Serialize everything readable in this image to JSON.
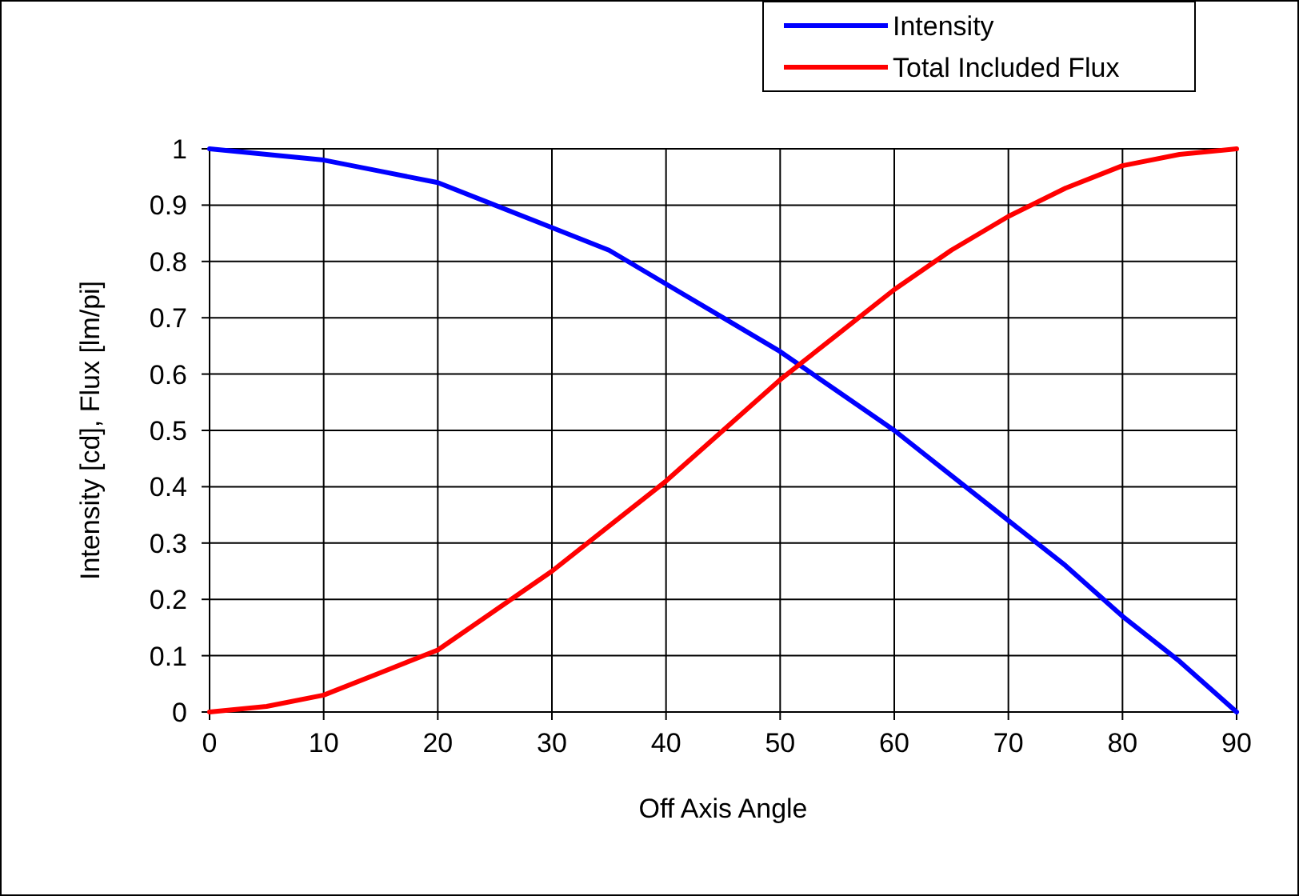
{
  "chart_data": {
    "type": "line",
    "xlabel": "Off Axis Angle",
    "ylabel": "Intensity [cd], Flux [lm/pi]",
    "x": [
      0,
      5,
      10,
      15,
      20,
      25,
      30,
      35,
      40,
      45,
      50,
      55,
      60,
      65,
      70,
      75,
      80,
      85,
      90
    ],
    "series": [
      {
        "name": "Intensity",
        "color": "#0000ff",
        "values": [
          1,
          0.99,
          0.98,
          0.96,
          0.94,
          0.9,
          0.86,
          0.82,
          0.76,
          0.7,
          0.64,
          0.57,
          0.5,
          0.42,
          0.34,
          0.26,
          0.17,
          0.09,
          0
        ]
      },
      {
        "name": "Total Included Flux",
        "color": "#ff0000",
        "values": [
          0,
          0.01,
          0.03,
          0.07,
          0.11,
          0.18,
          0.25,
          0.33,
          0.41,
          0.5,
          0.59,
          0.67,
          0.75,
          0.82,
          0.88,
          0.93,
          0.97,
          0.99,
          1
        ]
      }
    ],
    "xlim": [
      0,
      90
    ],
    "xticks": [
      0,
      10,
      20,
      30,
      40,
      50,
      60,
      70,
      80,
      90
    ],
    "ylim": [
      0,
      1
    ],
    "yticks": [
      0,
      0.1,
      0.2,
      0.3,
      0.4,
      0.5,
      0.6,
      0.7,
      0.8,
      0.9,
      1
    ],
    "grid": true,
    "legend": "top right",
    "marker": "none",
    "line_style": "solid"
  }
}
